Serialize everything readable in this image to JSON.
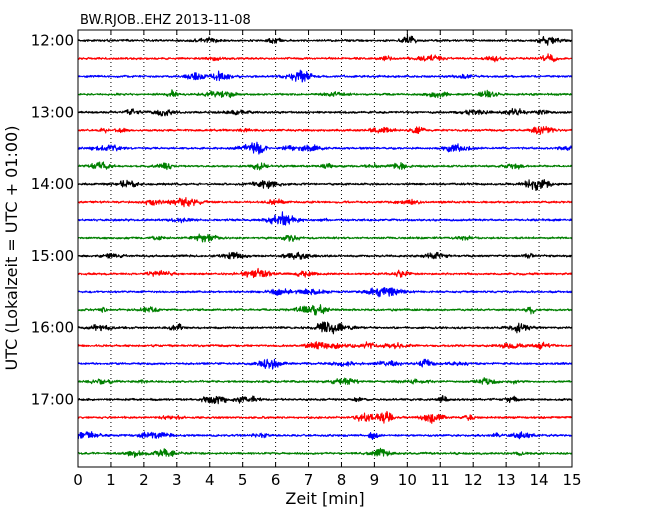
{
  "chart_data": {
    "type": "line",
    "title": "BW.RJOB..EHZ 2013-11-08",
    "xlabel": "Zeit  [min]",
    "ylabel": "UTC (Lokalzeit = UTC + 01:00)",
    "xlim": [
      0,
      15
    ],
    "x_ticks": [
      "0",
      "1",
      "2",
      "3",
      "4",
      "5",
      "6",
      "7",
      "8",
      "9",
      "10",
      "11",
      "12",
      "13",
      "14",
      "15"
    ],
    "y_tick_labels": [
      "12:00",
      "13:00",
      "14:00",
      "15:00",
      "16:00",
      "17:00"
    ],
    "grid": "vertical dotted lines at each minute",
    "trace_start_times": [
      "12:00",
      "12:15",
      "12:30",
      "12:45",
      "13:00",
      "13:15",
      "13:30",
      "13:45",
      "14:00",
      "14:15",
      "14:30",
      "14:45",
      "15:00",
      "15:15",
      "15:30",
      "15:45",
      "16:00",
      "16:15",
      "16:30",
      "16:45",
      "17:00",
      "17:15",
      "17:30",
      "17:45"
    ],
    "trace_colors": [
      "#000000",
      "#ff0000",
      "#0000ff",
      "#008000"
    ]
  }
}
